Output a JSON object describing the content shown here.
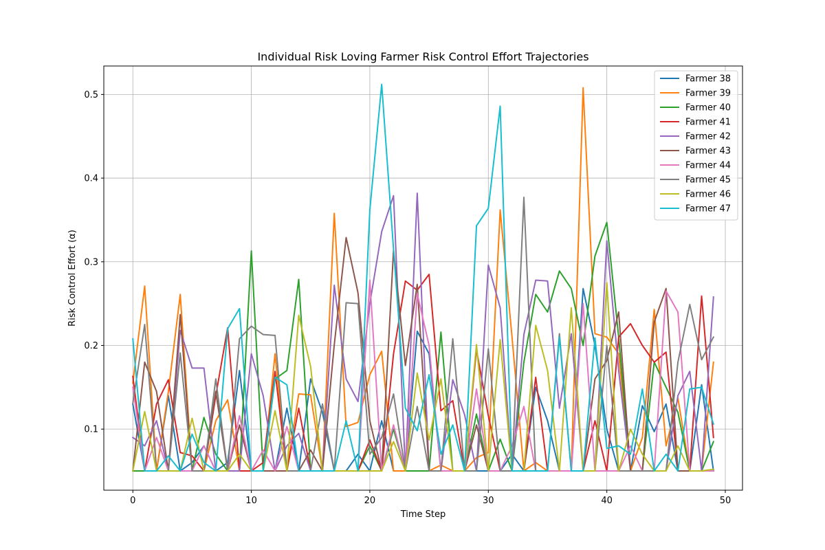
{
  "chart_data": {
    "type": "line",
    "title": "Individual Risk Loving Farmer Risk Control Effort Trajectories",
    "xlabel": "Time Step",
    "ylabel": "Risk Control Effort (α)",
    "xlim": [
      -2.45,
      51.45
    ],
    "ylim": [
      0.027,
      0.534
    ],
    "xticks": [
      0,
      10,
      20,
      30,
      40,
      50
    ],
    "yticks": [
      0.1,
      0.2,
      0.3,
      0.4,
      0.5
    ],
    "ytick_labels": [
      "0.1",
      "0.2",
      "0.3",
      "0.4",
      "0.5"
    ],
    "grid": true,
    "legend_position": "top-right",
    "x": [
      0,
      1,
      2,
      3,
      4,
      5,
      6,
      7,
      8,
      9,
      10,
      11,
      12,
      13,
      14,
      15,
      16,
      17,
      18,
      19,
      20,
      21,
      22,
      23,
      24,
      25,
      26,
      27,
      28,
      29,
      30,
      31,
      32,
      33,
      34,
      35,
      36,
      37,
      38,
      39,
      40,
      41,
      42,
      43,
      44,
      45,
      46,
      47,
      48,
      49
    ],
    "series": [
      {
        "name": "Farmer 38",
        "color": "#1f77b4",
        "values": [
          0.13,
          0.05,
          0.05,
          0.14,
          0.05,
          0.06,
          0.08,
          0.05,
          0.06,
          0.17,
          0.05,
          0.05,
          0.05,
          0.125,
          0.05,
          0.16,
          0.12,
          0.05,
          0.05,
          0.07,
          0.05,
          0.11,
          0.05,
          0.05,
          0.217,
          0.19,
          0.05,
          0.05,
          0.05,
          0.05,
          0.05,
          0.05,
          0.07,
          0.05,
          0.15,
          0.11,
          0.05,
          0.05,
          0.268,
          0.2,
          0.1,
          0.05,
          0.05,
          0.128,
          0.097,
          0.13,
          0.05,
          0.05,
          0.153,
          0.05
        ]
      },
      {
        "name": "Farmer 39",
        "color": "#ff7f0e",
        "values": [
          0.155,
          0.271,
          0.05,
          0.145,
          0.261,
          0.05,
          0.05,
          0.11,
          0.135,
          0.05,
          0.05,
          0.05,
          0.19,
          0.05,
          0.142,
          0.141,
          0.05,
          0.358,
          0.103,
          0.108,
          0.165,
          0.193,
          0.05,
          0.05,
          0.05,
          0.05,
          0.057,
          0.05,
          0.05,
          0.066,
          0.072,
          0.362,
          0.21,
          0.05,
          0.06,
          0.05,
          0.05,
          0.05,
          0.508,
          0.214,
          0.21,
          0.19,
          0.05,
          0.09,
          0.243,
          0.08,
          0.137,
          0.05,
          0.05,
          0.18
        ]
      },
      {
        "name": "Farmer 40",
        "color": "#2ca02c",
        "values": [
          0.05,
          0.05,
          0.05,
          0.05,
          0.05,
          0.05,
          0.114,
          0.07,
          0.05,
          0.05,
          0.313,
          0.05,
          0.16,
          0.17,
          0.279,
          0.05,
          0.05,
          0.05,
          0.05,
          0.05,
          0.08,
          0.05,
          0.1,
          0.05,
          0.05,
          0.05,
          0.216,
          0.05,
          0.05,
          0.118,
          0.05,
          0.088,
          0.05,
          0.18,
          0.261,
          0.24,
          0.289,
          0.268,
          0.2,
          0.307,
          0.347,
          0.21,
          0.05,
          0.05,
          0.18,
          0.15,
          0.12,
          0.05,
          0.05,
          0.085
        ]
      },
      {
        "name": "Farmer 41",
        "color": "#d62728",
        "values": [
          0.163,
          0.05,
          0.13,
          0.159,
          0.072,
          0.068,
          0.05,
          0.14,
          0.221,
          0.05,
          0.05,
          0.06,
          0.169,
          0.05,
          0.125,
          0.05,
          0.05,
          0.05,
          0.05,
          0.05,
          0.087,
          0.05,
          0.19,
          0.277,
          0.266,
          0.285,
          0.122,
          0.134,
          0.05,
          0.195,
          0.116,
          0.05,
          0.05,
          0.05,
          0.162,
          0.05,
          0.05,
          0.05,
          0.05,
          0.11,
          0.05,
          0.21,
          0.226,
          0.2,
          0.18,
          0.192,
          0.05,
          0.05,
          0.259,
          0.09
        ]
      },
      {
        "name": "Farmer 42",
        "color": "#9467bd",
        "values": [
          0.09,
          0.08,
          0.11,
          0.05,
          0.218,
          0.173,
          0.173,
          0.05,
          0.05,
          0.05,
          0.19,
          0.14,
          0.05,
          0.08,
          0.095,
          0.05,
          0.05,
          0.272,
          0.16,
          0.133,
          0.25,
          0.336,
          0.379,
          0.05,
          0.382,
          0.05,
          0.05,
          0.159,
          0.117,
          0.05,
          0.296,
          0.245,
          0.05,
          0.213,
          0.278,
          0.277,
          0.125,
          0.214,
          0.05,
          0.05,
          0.325,
          0.17,
          0.05,
          0.05,
          0.05,
          0.05,
          0.14,
          0.169,
          0.05,
          0.258
        ]
      },
      {
        "name": "Farmer 43",
        "color": "#8c564b",
        "values": [
          0.05,
          0.18,
          0.145,
          0.05,
          0.237,
          0.05,
          0.05,
          0.145,
          0.05,
          0.105,
          0.05,
          0.05,
          0.05,
          0.05,
          0.05,
          0.075,
          0.05,
          0.201,
          0.329,
          0.263,
          0.11,
          0.05,
          0.314,
          0.176,
          0.273,
          0.05,
          0.05,
          0.05,
          0.05,
          0.105,
          0.05,
          0.05,
          0.05,
          0.05,
          0.05,
          0.05,
          0.05,
          0.05,
          0.05,
          0.16,
          0.182,
          0.24,
          0.05,
          0.05,
          0.228,
          0.268,
          0.05,
          0.05,
          0.05,
          0.05
        ]
      },
      {
        "name": "Farmer 44",
        "color": "#e377c2",
        "values": [
          0.15,
          0.05,
          0.09,
          0.05,
          0.05,
          0.05,
          0.08,
          0.05,
          0.05,
          0.116,
          0.05,
          0.075,
          0.05,
          0.103,
          0.05,
          0.05,
          0.05,
          0.05,
          0.05,
          0.05,
          0.278,
          0.05,
          0.105,
          0.05,
          0.262,
          0.2,
          0.05,
          0.05,
          0.05,
          0.148,
          0.05,
          0.05,
          0.08,
          0.127,
          0.05,
          0.05,
          0.05,
          0.05,
          0.25,
          0.05,
          0.05,
          0.05,
          0.08,
          0.05,
          0.05,
          0.265,
          0.24,
          0.05,
          0.05,
          0.05
        ]
      },
      {
        "name": "Farmer 45",
        "color": "#7f7f7f",
        "values": [
          0.131,
          0.225,
          0.05,
          0.05,
          0.191,
          0.05,
          0.05,
          0.16,
          0.05,
          0.208,
          0.223,
          0.213,
          0.212,
          0.05,
          0.05,
          0.05,
          0.13,
          0.05,
          0.251,
          0.25,
          0.07,
          0.09,
          0.142,
          0.05,
          0.127,
          0.05,
          0.05,
          0.208,
          0.05,
          0.05,
          0.196,
          0.05,
          0.05,
          0.377,
          0.05,
          0.05,
          0.214,
          0.05,
          0.05,
          0.05,
          0.2,
          0.05,
          0.05,
          0.05,
          0.05,
          0.05,
          0.18,
          0.249,
          0.183,
          0.21
        ]
      },
      {
        "name": "Farmer 46",
        "color": "#bcbd22",
        "values": [
          0.05,
          0.121,
          0.05,
          0.05,
          0.05,
          0.113,
          0.05,
          0.05,
          0.05,
          0.07,
          0.05,
          0.05,
          0.122,
          0.05,
          0.236,
          0.175,
          0.05,
          0.05,
          0.05,
          0.05,
          0.05,
          0.05,
          0.085,
          0.05,
          0.167,
          0.087,
          0.16,
          0.05,
          0.05,
          0.201,
          0.05,
          0.207,
          0.05,
          0.05,
          0.224,
          0.17,
          0.05,
          0.245,
          0.05,
          0.05,
          0.275,
          0.05,
          0.1,
          0.07,
          0.05,
          0.05,
          0.08,
          0.05,
          0.05,
          0.052
        ]
      },
      {
        "name": "Farmer 47",
        "color": "#17becf",
        "values": [
          0.208,
          0.05,
          0.05,
          0.068,
          0.05,
          0.094,
          0.06,
          0.05,
          0.22,
          0.244,
          0.05,
          0.05,
          0.162,
          0.153,
          0.05,
          0.05,
          0.05,
          0.05,
          0.11,
          0.05,
          0.362,
          0.512,
          0.315,
          0.125,
          0.098,
          0.165,
          0.07,
          0.105,
          0.05,
          0.343,
          0.364,
          0.486,
          0.05,
          0.05,
          0.05,
          0.05,
          0.21,
          0.05,
          0.05,
          0.209,
          0.077,
          0.08,
          0.07,
          0.148,
          0.05,
          0.07,
          0.05,
          0.148,
          0.15,
          0.106
        ]
      }
    ]
  }
}
